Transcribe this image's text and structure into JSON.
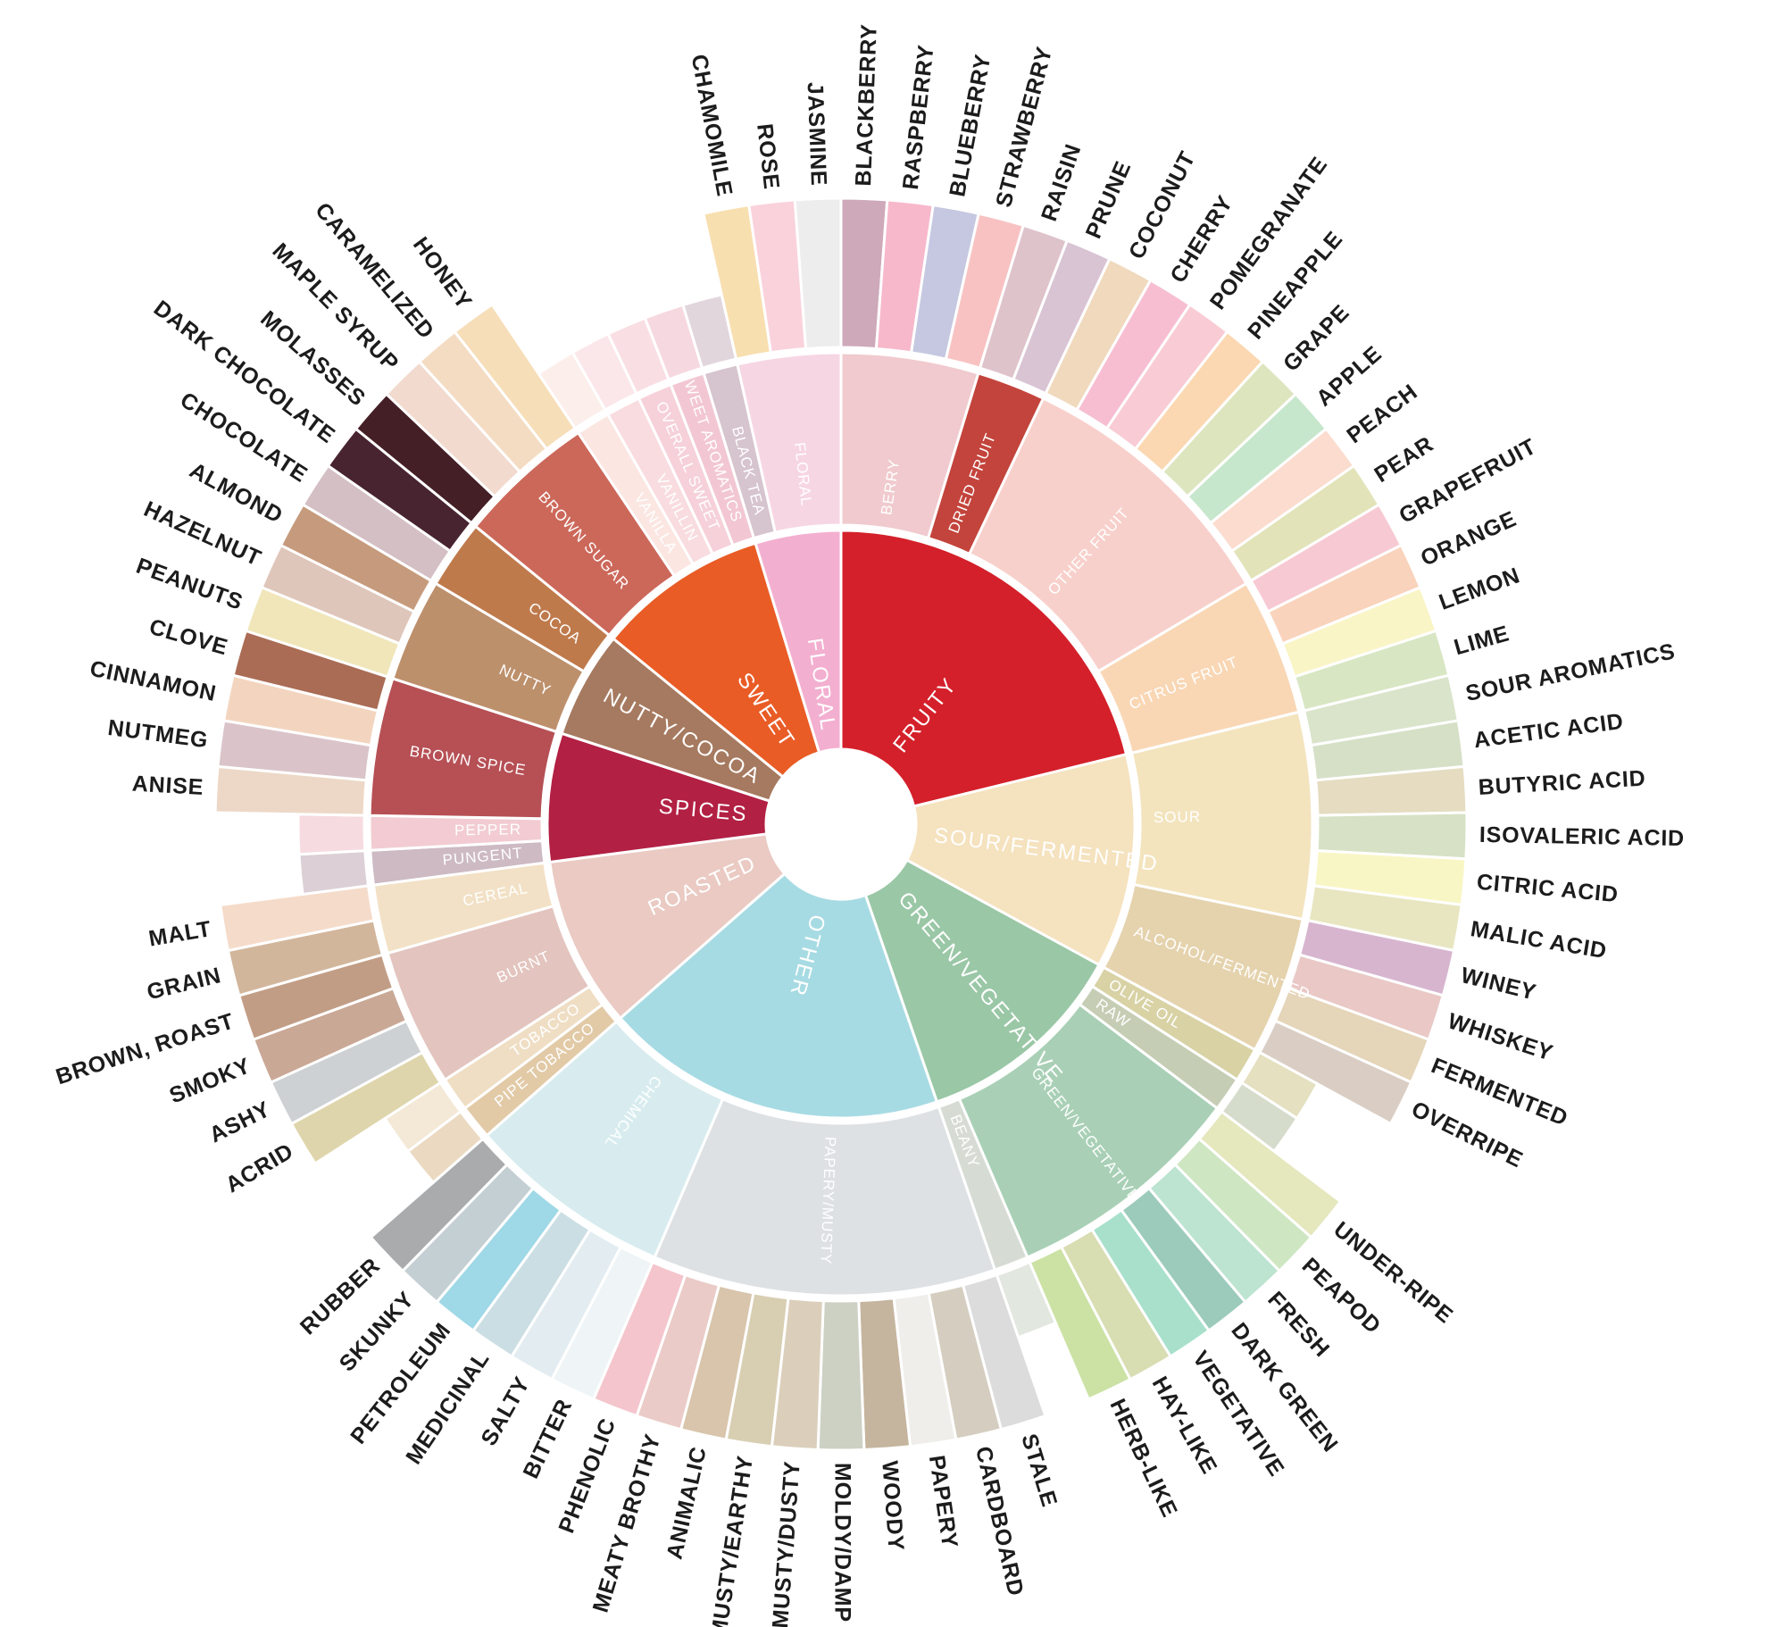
{
  "title": "",
  "colors": {
    "background": "#FFFFFF",
    "divider": "#FFFFFF",
    "outer_label": "#1C1C1C",
    "ring_label": "#FFFFFF"
  },
  "chart_data": {
    "type": "sunburst",
    "layout": {
      "start": "top",
      "direction": "clockwise",
      "rings": 3,
      "note": "equal angle per leaf; childless mid-ring nodes have short unlabeled outer stubs"
    },
    "categories": [
      {
        "label": "FRUITY",
        "color": "#D4202A",
        "children": [
          {
            "label": "BERRY",
            "color": "#F0CACE",
            "children": [
              {
                "label": "BLACKBERRY",
                "color": "#CEA9BA"
              },
              {
                "label": "RASPBERRY",
                "color": "#F7B8CC"
              },
              {
                "label": "BLUEBERRY",
                "color": "#C5C8E0"
              },
              {
                "label": "STRAWBERRY",
                "color": "#F8C2C3"
              }
            ]
          },
          {
            "label": "DRIED FRUIT",
            "color": "#C3443C",
            "children": [
              {
                "label": "RAISIN",
                "color": "#DEC3CB"
              },
              {
                "label": "PRUNE",
                "color": "#D9C4D4"
              }
            ]
          },
          {
            "label": "OTHER FRUIT",
            "color": "#F8D0CB",
            "children": [
              {
                "label": "COCONUT",
                "color": "#F0D9BD"
              },
              {
                "label": "CHERRY",
                "color": "#F7BED2"
              },
              {
                "label": "POMEGRANATE",
                "color": "#F9CBD4"
              },
              {
                "label": "PINEAPPLE",
                "color": "#FBD8B2"
              },
              {
                "label": "GRAPE",
                "color": "#DDE5BF"
              },
              {
                "label": "APPLE",
                "color": "#C7E7CC"
              },
              {
                "label": "PEACH",
                "color": "#FBDCCE"
              },
              {
                "label": "PEAR",
                "color": "#E2E3B9"
              }
            ]
          },
          {
            "label": "CITRUS FRUIT",
            "color": "#F9D7B5",
            "children": [
              {
                "label": "GRAPEFRUIT",
                "color": "#F7C9D3"
              },
              {
                "label": "ORANGE",
                "color": "#F9D3BB"
              },
              {
                "label": "LEMON",
                "color": "#FAF5C7"
              },
              {
                "label": "LIME",
                "color": "#D8E6C3"
              }
            ]
          }
        ]
      },
      {
        "label": "SOUR/FERMENTED",
        "color": "#F5E2BE",
        "children": [
          {
            "label": "SOUR",
            "color": "#F3E4BE",
            "children": [
              {
                "label": "SOUR AROMATICS",
                "color": "#DAE4CB"
              },
              {
                "label": "ACETIC ACID",
                "color": "#D6E0C7"
              },
              {
                "label": "BUTYRIC ACID",
                "color": "#E5DCC1"
              },
              {
                "label": "ISOVALERIC ACID",
                "color": "#D7E1C5"
              },
              {
                "label": "CITRIC ACID",
                "color": "#F9F6C6"
              },
              {
                "label": "MALIC ACID",
                "color": "#E8E6C1"
              }
            ]
          },
          {
            "label": "ALCOHOL/FERMENTED",
            "color": "#E5D3AE",
            "children": [
              {
                "label": "WINEY",
                "color": "#D7B5CF"
              },
              {
                "label": "WHISKEY",
                "color": "#E9C8C6"
              },
              {
                "label": "FERMENTED",
                "color": "#E5D5B9"
              },
              {
                "label": "OVERRIPE",
                "color": "#DACEC4"
              }
            ]
          }
        ]
      },
      {
        "label": "GREEN/VEGETATIVE",
        "color": "#9AC7A6",
        "children": [
          {
            "label": "OLIVE OIL",
            "color": "#D8D2A5"
          },
          {
            "label": "RAW",
            "color": "#C5CDB4"
          },
          {
            "label": "GREEN/VEGETATIVE",
            "color": "#A9D0B6",
            "children": [
              {
                "label": "UNDER-RIPE",
                "color": "#E5E7BD"
              },
              {
                "label": "PEAPOD",
                "color": "#CFE6C3"
              },
              {
                "label": "FRESH",
                "color": "#BCE4D0"
              },
              {
                "label": "DARK GREEN",
                "color": "#9CCBBB"
              },
              {
                "label": "VEGETATIVE",
                "color": "#A8E0CC"
              },
              {
                "label": "HAY-LIKE",
                "color": "#D8DDB2"
              },
              {
                "label": "HERB-LIKE",
                "color": "#CBE2A4"
              }
            ]
          },
          {
            "label": "BEANY",
            "color": "#D6DCD3"
          }
        ]
      },
      {
        "label": "OTHER",
        "color": "#A7DBE3",
        "children": [
          {
            "label": "PAPERY/MUSTY",
            "color": "#DDE1E4",
            "children": [
              {
                "label": "STALE",
                "color": "#DBDCDB"
              },
              {
                "label": "CARDBOARD",
                "color": "#D5CEC0"
              },
              {
                "label": "PAPERY",
                "color": "#EFEEEA"
              },
              {
                "label": "WOODY",
                "color": "#C5B59E"
              },
              {
                "label": "MOLDY/DAMP",
                "color": "#CDD1C3"
              },
              {
                "label": "MUSTY/DUSTY",
                "color": "#DBCFBB"
              },
              {
                "label": "MUSTY/EARTHY",
                "color": "#D8CEB2"
              },
              {
                "label": "ANIMALIC",
                "color": "#D8C5AC"
              },
              {
                "label": "MEATY BROTHY",
                "color": "#EACBC7"
              },
              {
                "label": "PHENOLIC",
                "color": "#F4C5CD"
              }
            ]
          },
          {
            "label": "CHEMICAL",
            "color": "#D8ECEF",
            "children": [
              {
                "label": "BITTER",
                "color": "#EFF5F7"
              },
              {
                "label": "SALTY",
                "color": "#E3EDF1"
              },
              {
                "label": "MEDICINAL",
                "color": "#CBDEE3"
              },
              {
                "label": "PETROLEUM",
                "color": "#9FD8E6"
              },
              {
                "label": "SKUNKY",
                "color": "#C4CFD3"
              },
              {
                "label": "RUBBER",
                "color": "#A9ABAD"
              }
            ]
          }
        ]
      },
      {
        "label": "ROASTED",
        "color": "#EACAC3",
        "children": [
          {
            "label": "PIPE TOBACCO",
            "color": "#E2CAA7"
          },
          {
            "label": "TOBACCO",
            "color": "#EFDEC4"
          },
          {
            "label": "BURNT",
            "color": "#E3C4BE",
            "children": [
              {
                "label": "ACRID",
                "color": "#DFD5AC"
              },
              {
                "label": "ASHY",
                "color": "#CDD1D3"
              },
              {
                "label": "SMOKY",
                "color": "#CAA896"
              },
              {
                "label": "BROWN, ROAST",
                "color": "#C29D86"
              }
            ]
          },
          {
            "label": "CEREAL",
            "color": "#F2E1C6",
            "children": [
              {
                "label": "GRAIN",
                "color": "#D2B69C"
              },
              {
                "label": "MALT",
                "color": "#F5DBCA"
              }
            ]
          }
        ]
      },
      {
        "label": "SPICES",
        "color": "#B22044",
        "children": [
          {
            "label": "PUNGENT",
            "color": "#CDBAC3"
          },
          {
            "label": "PEPPER",
            "color": "#F2CCD2"
          },
          {
            "label": "BROWN SPICE",
            "color": "#B65055",
            "children": [
              {
                "label": "ANISE",
                "color": "#EDD8C7"
              },
              {
                "label": "NUTMEG",
                "color": "#DAC4CA"
              },
              {
                "label": "CINNAMON",
                "color": "#F3D5BF"
              },
              {
                "label": "CLOVE",
                "color": "#AA6C55"
              }
            ]
          }
        ]
      },
      {
        "label": "NUTTY/COCOA",
        "color": "#A67A60",
        "children": [
          {
            "label": "NUTTY",
            "color": "#BD906C",
            "children": [
              {
                "label": "PEANUTS",
                "color": "#F0E6BA"
              },
              {
                "label": "HAZELNUT",
                "color": "#DFC6BA"
              },
              {
                "label": "ALMOND",
                "color": "#C69B7D"
              }
            ]
          },
          {
            "label": "COCOA",
            "color": "#BF7A4C",
            "children": [
              {
                "label": "CHOCOLATE",
                "color": "#D4BFC4"
              },
              {
                "label": "DARK CHOCOLATE",
                "color": "#482430"
              }
            ]
          }
        ]
      },
      {
        "label": "SWEET",
        "color": "#E95C26",
        "children": [
          {
            "label": "BROWN SUGAR",
            "color": "#CC685A",
            "children": [
              {
                "label": "MOLASSES",
                "color": "#451F26"
              },
              {
                "label": "MAPLE SYRUP",
                "color": "#F2DACF"
              },
              {
                "label": "CARAMELIZED",
                "color": "#F4DCC3"
              },
              {
                "label": "HONEY",
                "color": "#F6DEB9"
              }
            ]
          },
          {
            "label": "VANILLA",
            "color": "#FBE6E2"
          },
          {
            "label": "VANILLIN",
            "color": "#F9DCDF"
          },
          {
            "label": "OVERALL SWEET",
            "color": "#F6D1D9"
          },
          {
            "label": "SWEET AROMATICS",
            "color": "#F2C7D3"
          }
        ]
      },
      {
        "label": "FLORAL",
        "color": "#F3AFD0",
        "children": [
          {
            "label": "BLACK TEA",
            "color": "#D6C4CE"
          },
          {
            "label": "FLORAL",
            "color": "#F7D6E3",
            "children": [
              {
                "label": "CHAMOMILE",
                "color": "#F8DFB0"
              },
              {
                "label": "ROSE",
                "color": "#FAD2DC"
              },
              {
                "label": "JASMINE",
                "color": "#EDEDED"
              }
            ]
          }
        ]
      }
    ]
  }
}
